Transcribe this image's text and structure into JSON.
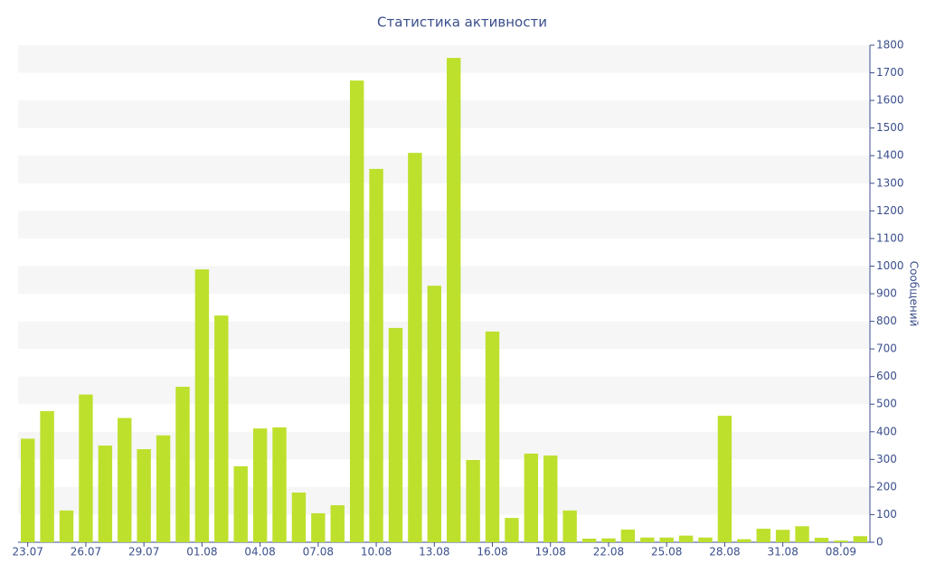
{
  "chart_data": {
    "type": "bar",
    "title": "Статистика активности",
    "y_label": "Сообщений",
    "categories": [
      "23.07",
      null,
      null,
      "26.07",
      null,
      null,
      "29.07",
      null,
      null,
      "01.08",
      null,
      null,
      "04.08",
      null,
      null,
      "07.08",
      null,
      null,
      "10.08",
      null,
      null,
      "13.08",
      null,
      null,
      "16.08",
      null,
      null,
      "19.08",
      null,
      null,
      "22.08",
      null,
      null,
      "25.08",
      null,
      null,
      "28.08",
      null,
      null,
      "31.08",
      null,
      null,
      "08.09",
      null
    ],
    "values": [
      375,
      475,
      115,
      535,
      350,
      450,
      337,
      387,
      563,
      988,
      821,
      275,
      412,
      416,
      180,
      105,
      134,
      1672,
      1352,
      776,
      1410,
      929,
      1754,
      298,
      763,
      88,
      321,
      314,
      115,
      13,
      14,
      46,
      17,
      17,
      24,
      17,
      458,
      11,
      49,
      45,
      58,
      16,
      6,
      22
    ],
    "color": "#bde02d",
    "ylim": [
      0,
      1800
    ],
    "yticks": [
      0,
      100,
      200,
      300,
      400,
      500,
      600,
      700,
      800,
      900,
      1000,
      1100,
      1200,
      1300,
      1400,
      1500,
      1600,
      1700,
      1800
    ],
    "grid": true,
    "y_axis_side": "right"
  }
}
